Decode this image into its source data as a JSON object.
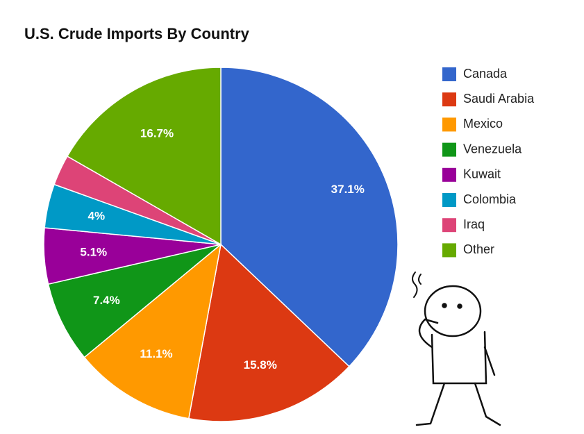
{
  "chart_data": {
    "type": "pie",
    "title": "U.S. Crude Imports By Country",
    "categories": [
      "Canada",
      "Saudi Arabia",
      "Mexico",
      "Venezuela",
      "Kuwait",
      "Colombia",
      "Iraq",
      "Other"
    ],
    "values": [
      37.1,
      15.8,
      11.1,
      7.4,
      5.1,
      4,
      2.8,
      16.7
    ],
    "value_labels": [
      "37.1%",
      "15.8%",
      "11.1%",
      "7.4%",
      "5.1%",
      "4%",
      null,
      "16.7%"
    ],
    "colors": [
      "#3366cc",
      "#dc3912",
      "#ff9900",
      "#109618",
      "#990099",
      "#0099c6",
      "#dd4477",
      "#66aa00"
    ],
    "legend": "right"
  }
}
